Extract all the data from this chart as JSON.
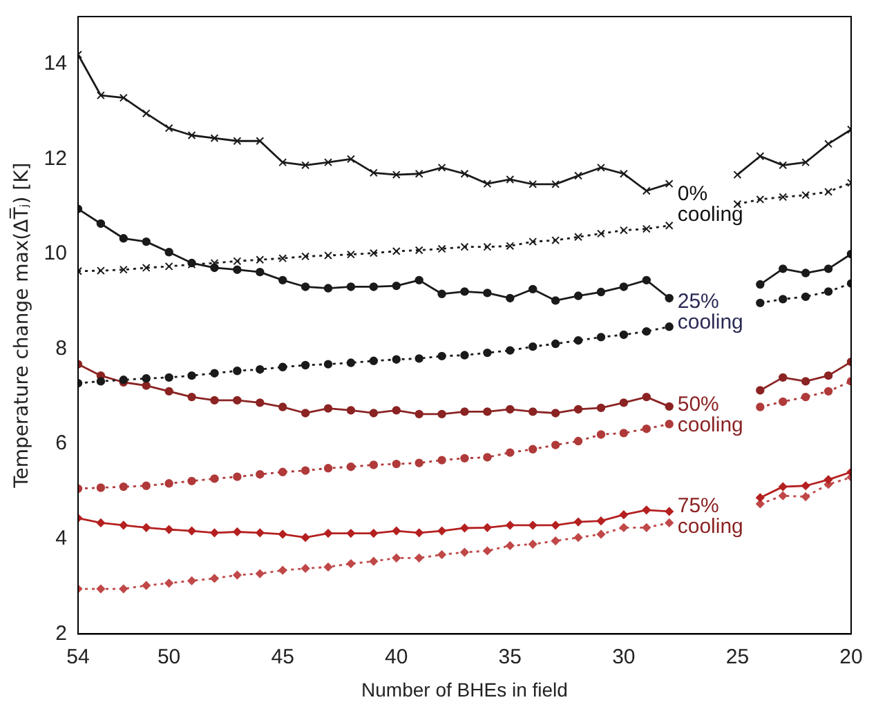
{
  "chart_data": {
    "type": "line",
    "xlabel": "Number of BHEs in field",
    "ylabel": "Temperature change max(ΔT̅ⱼ) [K]",
    "x": [
      54,
      53,
      52,
      51,
      50,
      49,
      48,
      47,
      46,
      45,
      44,
      43,
      42,
      41,
      40,
      39,
      38,
      37,
      36,
      35,
      34,
      33,
      32,
      31,
      30,
      29,
      28,
      27,
      26,
      25,
      24,
      23,
      22,
      21,
      20
    ],
    "xlim": [
      54,
      20
    ],
    "xticks": [
      54,
      50,
      45,
      40,
      35,
      30,
      25,
      20
    ],
    "ylim": [
      2,
      15
    ],
    "yticks": [
      2,
      4,
      6,
      8,
      10,
      12,
      14
    ],
    "grid": false,
    "legend": false,
    "series": [
      {
        "color": "#1a1a1a",
        "marker": "cross",
        "line_style": "solid",
        "values": [
          14.2,
          13.34,
          13.29,
          12.96,
          12.65,
          12.5,
          12.44,
          12.38,
          12.38,
          11.93,
          11.87,
          11.93,
          12.0,
          11.71,
          11.67,
          11.69,
          11.82,
          11.69,
          11.48,
          11.57,
          11.47,
          11.47,
          11.65,
          11.82,
          11.69,
          11.33,
          11.48,
          null,
          null,
          11.67,
          12.06,
          11.87,
          11.93,
          12.32,
          12.62
        ]
      },
      {
        "color": "#1a1a1a",
        "marker": "cross",
        "line_style": "dotted",
        "values": [
          9.64,
          9.65,
          9.67,
          9.71,
          9.74,
          9.78,
          9.81,
          9.85,
          9.88,
          9.91,
          9.95,
          9.97,
          9.99,
          10.02,
          10.06,
          10.08,
          10.11,
          10.15,
          10.15,
          10.17,
          10.26,
          10.29,
          10.36,
          10.43,
          10.5,
          10.53,
          10.6,
          null,
          null,
          11.05,
          11.15,
          11.2,
          11.24,
          11.31,
          11.5
        ]
      },
      {
        "color": "#1a1a1a",
        "marker": "circle",
        "line_style": "solid",
        "values": [
          10.95,
          10.64,
          10.33,
          10.26,
          10.04,
          9.81,
          9.71,
          9.67,
          9.62,
          9.45,
          9.31,
          9.28,
          9.31,
          9.31,
          9.33,
          9.45,
          9.16,
          9.21,
          9.18,
          9.07,
          9.26,
          9.02,
          9.12,
          9.2,
          9.31,
          9.45,
          9.07,
          null,
          null,
          null,
          9.36,
          9.69,
          9.6,
          9.69,
          10.0
        ]
      },
      {
        "color": "#1a1a1a",
        "marker": "circle",
        "line_style": "dotted",
        "values": [
          7.28,
          7.32,
          7.35,
          7.38,
          7.4,
          7.44,
          7.49,
          7.54,
          7.57,
          7.62,
          7.66,
          7.68,
          7.71,
          7.75,
          7.78,
          7.8,
          7.85,
          7.87,
          7.92,
          7.97,
          8.05,
          8.11,
          8.18,
          8.25,
          8.3,
          8.37,
          8.47,
          null,
          null,
          null,
          8.97,
          9.05,
          9.1,
          9.21,
          9.38
        ]
      },
      {
        "color": "#8b2323",
        "marker": "circle",
        "line_style": "solid",
        "values": [
          7.68,
          7.44,
          7.3,
          7.23,
          7.11,
          6.99,
          6.92,
          6.92,
          6.87,
          6.78,
          6.65,
          6.75,
          6.71,
          6.65,
          6.71,
          6.63,
          6.63,
          6.68,
          6.68,
          6.73,
          6.68,
          6.65,
          6.73,
          6.76,
          6.87,
          6.99,
          6.79,
          null,
          null,
          null,
          7.13,
          7.4,
          7.32,
          7.44,
          7.73
        ]
      },
      {
        "color": "#b03a3a",
        "marker": "circle",
        "line_style": "dotted",
        "values": [
          5.06,
          5.08,
          5.1,
          5.12,
          5.17,
          5.22,
          5.27,
          5.31,
          5.36,
          5.41,
          5.44,
          5.49,
          5.52,
          5.56,
          5.58,
          5.6,
          5.66,
          5.7,
          5.72,
          5.82,
          5.89,
          5.98,
          6.06,
          6.2,
          6.23,
          6.32,
          6.42,
          null,
          null,
          null,
          6.78,
          6.89,
          6.99,
          7.11,
          7.32
        ]
      },
      {
        "color": "#b52020",
        "marker": "diamond",
        "line_style": "solid",
        "values": [
          4.44,
          4.34,
          4.29,
          4.24,
          4.2,
          4.17,
          4.13,
          4.15,
          4.13,
          4.1,
          4.03,
          4.12,
          4.12,
          4.12,
          4.17,
          4.13,
          4.17,
          4.23,
          4.24,
          4.29,
          4.29,
          4.29,
          4.36,
          4.38,
          4.51,
          4.61,
          4.58,
          null,
          null,
          null,
          4.87,
          5.1,
          5.12,
          5.25,
          5.41
        ]
      },
      {
        "color": "#c04848",
        "marker": "diamond",
        "line_style": "dotted",
        "values": [
          2.95,
          2.95,
          2.95,
          3.02,
          3.07,
          3.12,
          3.17,
          3.24,
          3.27,
          3.34,
          3.38,
          3.41,
          3.48,
          3.53,
          3.6,
          3.6,
          3.67,
          3.72,
          3.75,
          3.86,
          3.89,
          3.96,
          4.03,
          4.1,
          4.24,
          4.24,
          4.34,
          null,
          null,
          null,
          4.74,
          4.91,
          4.89,
          5.15,
          5.3
        ]
      }
    ],
    "annotations": [
      "0%\ncooling",
      "25%\ncooling",
      "50%\ncooling",
      "75%\ncooling"
    ]
  }
}
